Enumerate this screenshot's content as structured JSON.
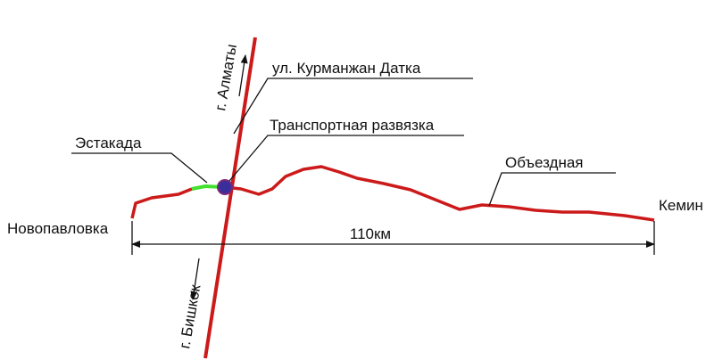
{
  "labels": {
    "almaty": "г. Алматы",
    "street": "ул. Курманжан Датка",
    "interchange": "Транспортная развязка",
    "overpass": "Эстакада",
    "bypass": "Объездная",
    "kemin": "Кемин",
    "novopavlovka": "Новопавловка",
    "distance": "110км",
    "bishkek": "г. Бишкек"
  }
}
